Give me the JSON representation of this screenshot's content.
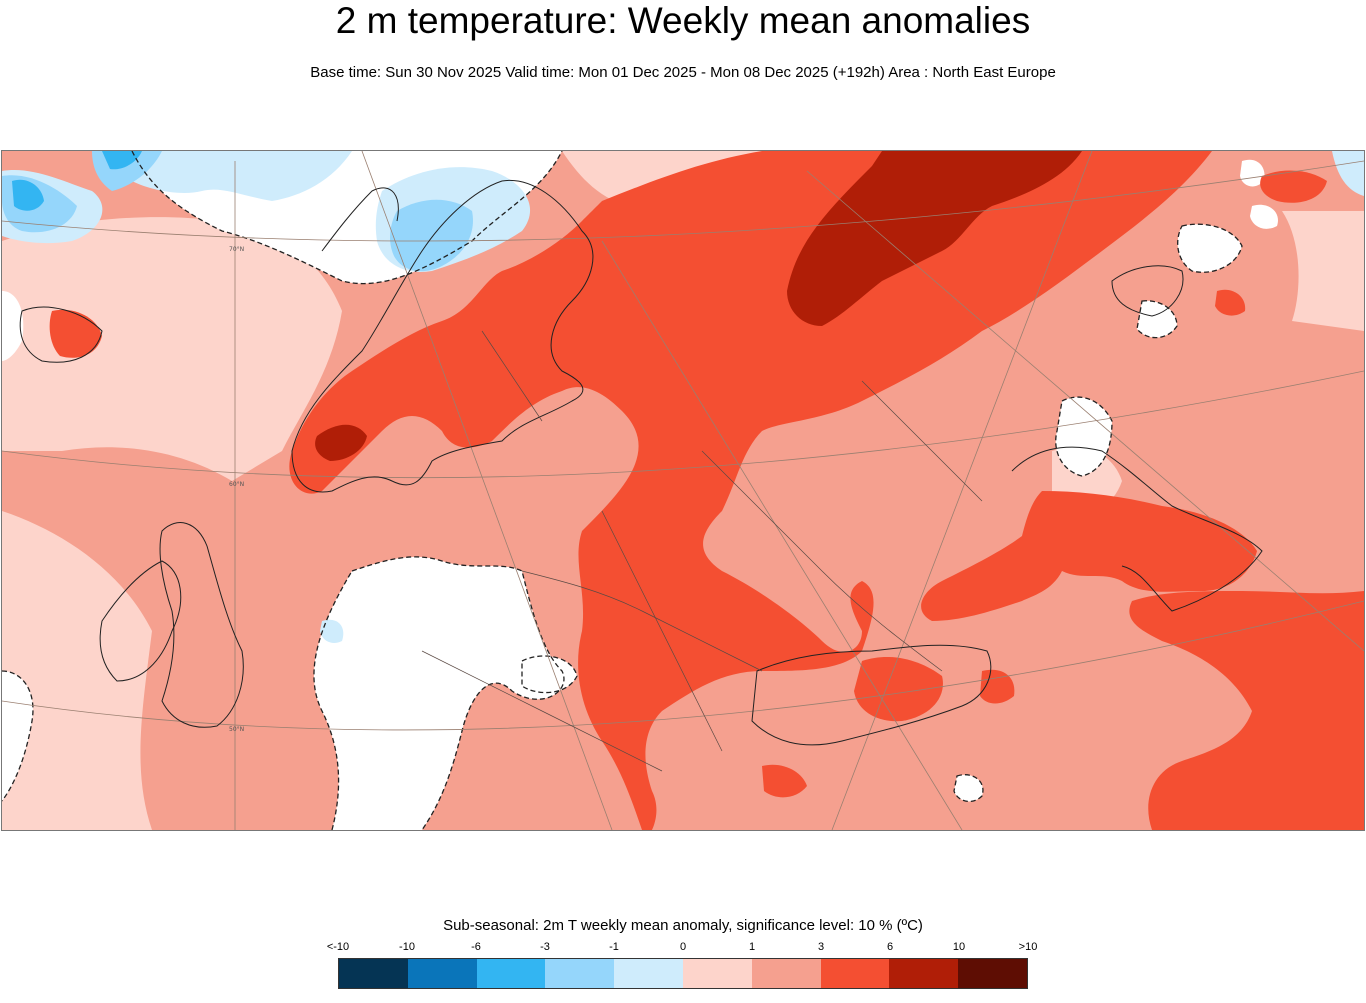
{
  "header": {
    "title": "2 m temperature: Weekly mean anomalies",
    "subtitle": "Base time: Sun 30 Nov 2025 Valid time: Mon 01 Dec 2025 - Mon 08 Dec 2025 (+192h) Area : North East Europe"
  },
  "map": {
    "area": "North East Europe",
    "grid_labels": [
      "70°N",
      "60°N",
      "50°N"
    ],
    "anomaly_colors": {
      "lt_m10": "#053454",
      "m10_m6": "#0a75ba",
      "m6_m3": "#33b5f2",
      "m3_m1": "#95d6fb",
      "m1_0": "#cfecfc",
      "0_1": "#fdd4cb",
      "1_3": "#f5a08f",
      "3_6": "#f44f32",
      "6_10": "#b01e07",
      "gt_10": "#5e0d03",
      "not_significant": "#ffffff"
    }
  },
  "legend": {
    "title": "Sub-seasonal: 2m T weekly mean anomaly, significance level: 10 % (ºC)",
    "tick_labels": [
      "<-10",
      "-10",
      "-6",
      "-3",
      "-1",
      "0",
      "1",
      "3",
      "6",
      "10",
      ">10"
    ],
    "colors": [
      "#053454",
      "#0a75ba",
      "#33b5f2",
      "#95d6fb",
      "#cfecfc",
      "#fdd4cb",
      "#f5a08f",
      "#f44f32",
      "#b01e07",
      "#5e0d03"
    ]
  }
}
